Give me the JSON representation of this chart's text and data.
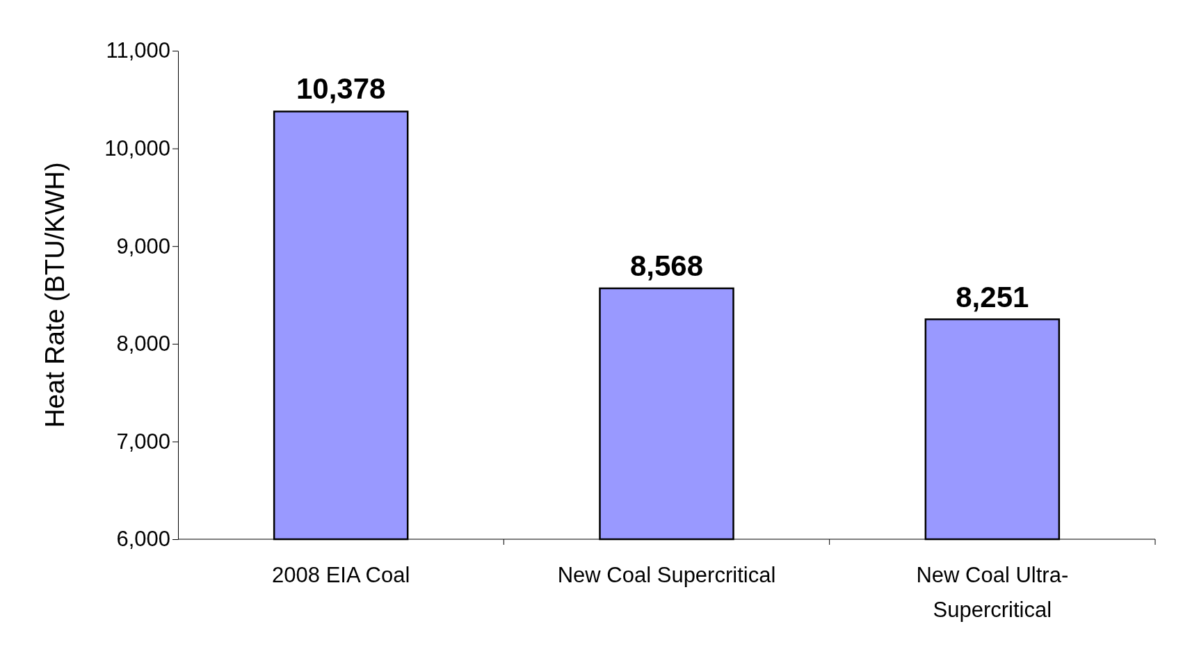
{
  "chart_data": {
    "type": "bar",
    "ylabel": "Heat Rate (BTU/KWH)",
    "categories": [
      "2008 EIA Coal",
      "New Coal Supercritical",
      "New Coal Ultra-Supercritical"
    ],
    "values": [
      10378,
      8568,
      8251
    ],
    "color": "#9999ff",
    "ylim": [
      6000,
      11000
    ],
    "yticks": [
      {
        "value": 6000,
        "label": "6,000"
      },
      {
        "value": 7000,
        "label": "7,000"
      },
      {
        "value": 8000,
        "label": "8,000"
      },
      {
        "value": 9000,
        "label": "9,000"
      },
      {
        "value": 10000,
        "label": "10,000"
      },
      {
        "value": 11000,
        "label": "11,000"
      }
    ],
    "value_labels": [
      "10,378",
      "8,568",
      "8,251"
    ],
    "grid": false
  }
}
